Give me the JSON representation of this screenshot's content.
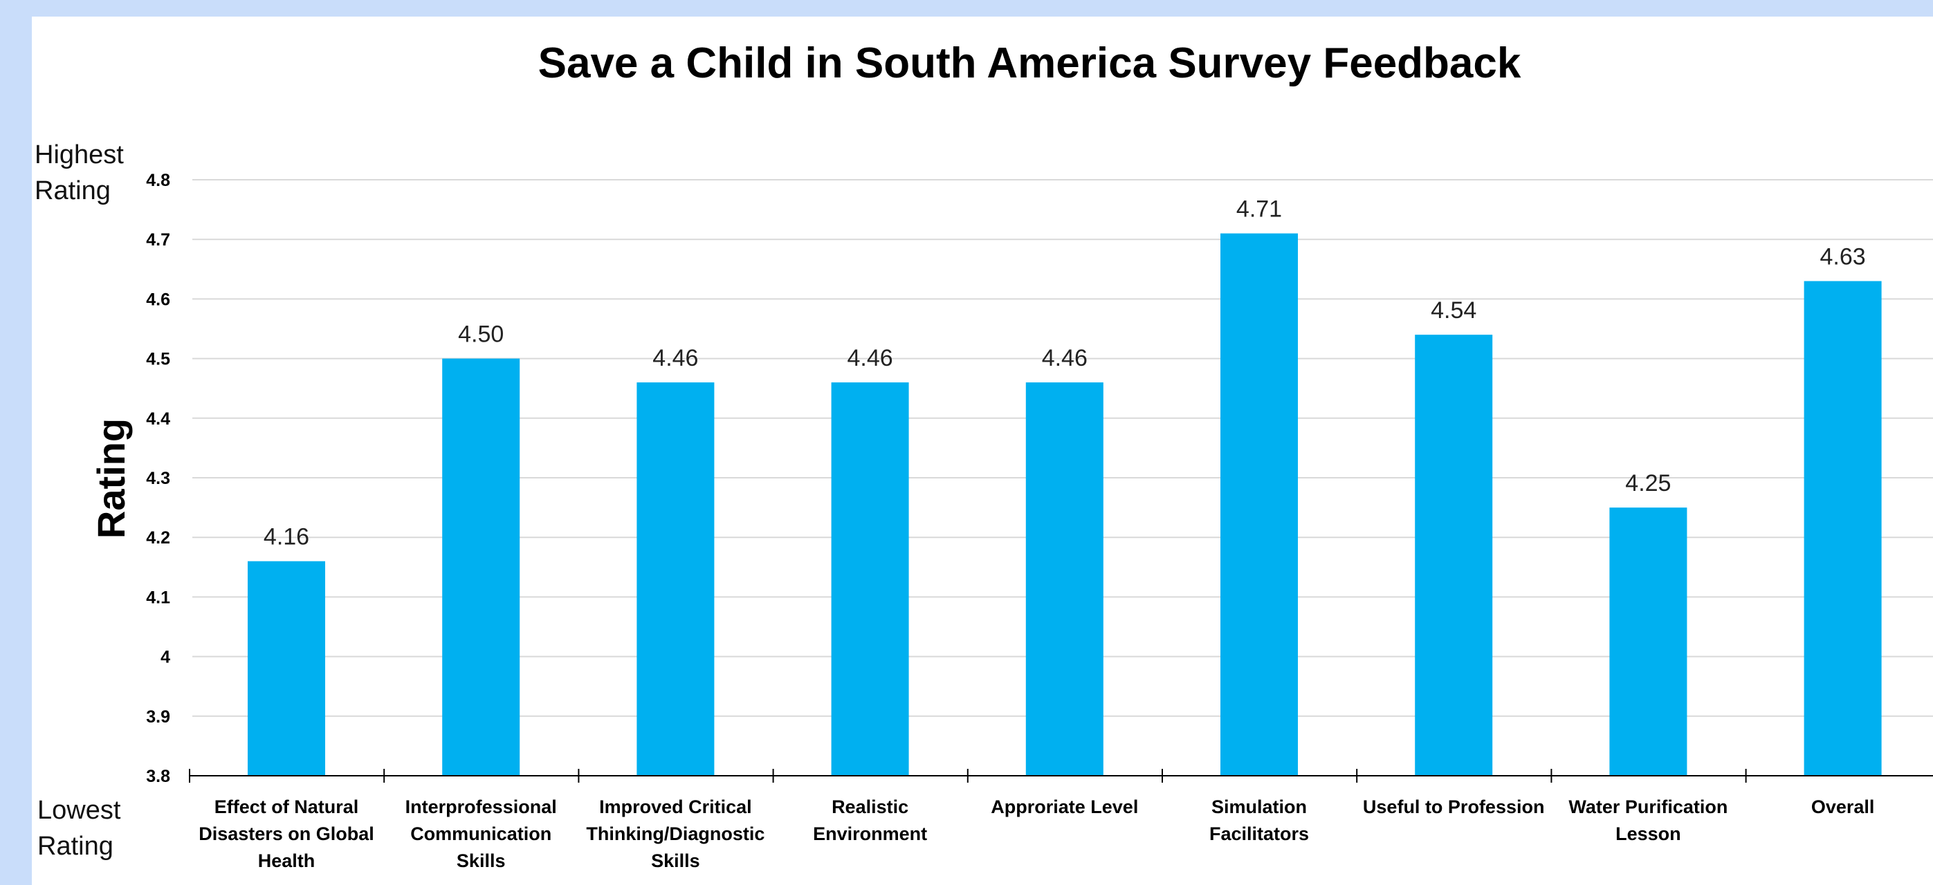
{
  "chart_data": {
    "type": "bar",
    "title": "Save a Child in South America Survey Feedback",
    "ylabel": "Rating",
    "xlabel": "",
    "ylim": [
      3.8,
      4.8
    ],
    "yticks": [
      "3.8",
      "3.9",
      "4",
      "4.1",
      "4.2",
      "4.3",
      "4.4",
      "4.5",
      "4.6",
      "4.7",
      "4.8"
    ],
    "grid": true,
    "bar_color": "#00b0f0",
    "top_annotation": "Highest Rating",
    "bottom_annotation": "Lowest Rating",
    "categories": [
      "Effect of Natural Disasters on Global Health",
      "Interprofessional Communication Skills",
      "Improved Critical Thinking/Diagnostic Skills",
      "Realistic Environment",
      "Approriate Level",
      "Simulation Facilitators",
      "Useful to Profession",
      "Water Purification Lesson",
      "Overall"
    ],
    "values": [
      4.16,
      4.5,
      4.46,
      4.46,
      4.46,
      4.71,
      4.54,
      4.25,
      4.63
    ],
    "value_labels": [
      "4.16",
      "4.50",
      "4.46",
      "4.46",
      "4.46",
      "4.71",
      "4.54",
      "4.25",
      "4.63"
    ]
  }
}
